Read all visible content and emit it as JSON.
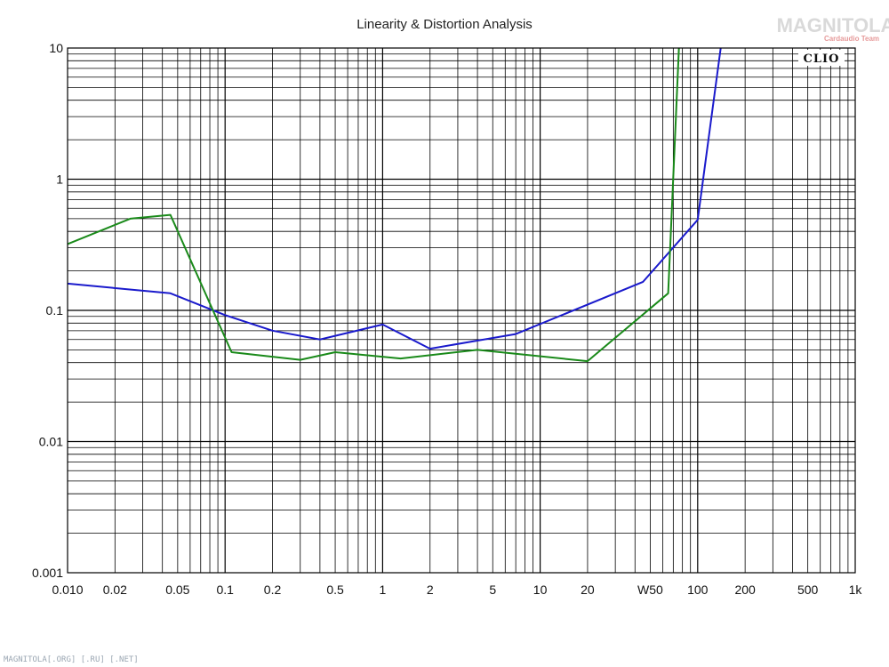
{
  "chart_data": {
    "type": "line",
    "title": "Linearity & Distortion Analysis",
    "brand": "CLIO",
    "watermark": {
      "logo": "MAGNITOLA",
      "sub": "Cardaudio Team"
    },
    "footer": "MAGNITOLA[.ORG] [.RU] [.NET]",
    "x_scale": "log",
    "y_scale": "log",
    "xlim": [
      0.01,
      1000
    ],
    "ylim": [
      0.001,
      10
    ],
    "grid": true,
    "x_ticks": [
      {
        "value": 0.01,
        "label": "0.010"
      },
      {
        "value": 0.02,
        "label": "0.02"
      },
      {
        "value": 0.05,
        "label": "0.05"
      },
      {
        "value": 0.1,
        "label": "0.1"
      },
      {
        "value": 0.2,
        "label": "0.2"
      },
      {
        "value": 0.5,
        "label": "0.5"
      },
      {
        "value": 1,
        "label": "1"
      },
      {
        "value": 2,
        "label": "2"
      },
      {
        "value": 5,
        "label": "5"
      },
      {
        "value": 10,
        "label": "10"
      },
      {
        "value": 20,
        "label": "20"
      },
      {
        "value": 50,
        "label": "W50"
      },
      {
        "value": 100,
        "label": "100"
      },
      {
        "value": 200,
        "label": "200"
      },
      {
        "value": 500,
        "label": "500"
      },
      {
        "value": 1000,
        "label": "1k"
      }
    ],
    "y_ticks": [
      {
        "value": 10,
        "label": "10"
      },
      {
        "value": 1,
        "label": "1"
      },
      {
        "value": 0.1,
        "label": "0.1"
      },
      {
        "value": 0.01,
        "label": "0.01"
      },
      {
        "value": 0.001,
        "label": "0.001"
      }
    ],
    "series": [
      {
        "color": "#1a1acc",
        "x": [
          0.01,
          0.045,
          0.1,
          0.2,
          0.4,
          1.0,
          2.0,
          7.0,
          45,
          100,
          140
        ],
        "y": [
          0.16,
          0.135,
          0.092,
          0.07,
          0.06,
          0.078,
          0.051,
          0.066,
          0.165,
          0.49,
          10
        ]
      },
      {
        "color": "#1a8a1a",
        "x": [
          0.01,
          0.025,
          0.045,
          0.11,
          0.3,
          0.5,
          1.3,
          4,
          20,
          65,
          76
        ],
        "y": [
          0.32,
          0.5,
          0.535,
          0.048,
          0.042,
          0.048,
          0.043,
          0.05,
          0.041,
          0.135,
          10
        ]
      }
    ]
  }
}
